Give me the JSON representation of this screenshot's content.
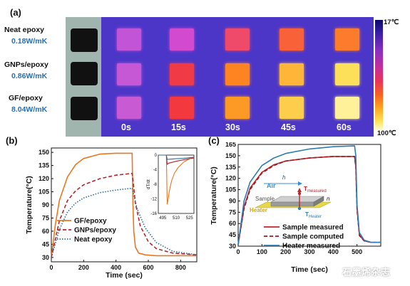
{
  "panel_a": {
    "label": "(a)",
    "materials": [
      {
        "name": "Neat epoxy",
        "k": "0.18W/mK"
      },
      {
        "name": "GNPs/epoxy",
        "k": "0.86W/mK"
      },
      {
        "name": "GF/epoxy",
        "k": "8.04W/mK"
      }
    ],
    "times": [
      "0s",
      "15s",
      "30s",
      "45s",
      "60s"
    ],
    "colorbar_top": "17℃",
    "colorbar_bottom": "100℃",
    "square_colors": [
      [
        "#c254d8",
        "#d24ad0",
        "#ef4a6a",
        "#f96238",
        "#fb7c2c"
      ],
      [
        "#c658d6",
        "#f03a45",
        "#fd8420",
        "#fdb638",
        "#fde05a"
      ],
      [
        "#c85ad3",
        "#f3393e",
        "#fd9a26",
        "#fdce4c",
        "#fff09a"
      ]
    ]
  },
  "panel_b": {
    "label": "(b)"
  },
  "panel_c": {
    "label": "(c)"
  },
  "watermark": "石墨烯杂志",
  "chart_data": [
    {
      "type": "line",
      "title": "",
      "xlabel": "Time (sec)",
      "ylabel": "Temperature(°C)",
      "xlim": [
        0,
        900
      ],
      "ylim": [
        25,
        155
      ],
      "xticks": [
        0,
        200,
        400,
        600,
        800
      ],
      "yticks": [
        30,
        45,
        60,
        75,
        90,
        105,
        120,
        135,
        150
      ],
      "legend_position": "bottom-left",
      "series": [
        {
          "name": "GF/epoxy",
          "color": "#e87722",
          "dash": "solid",
          "x": [
            0,
            25,
            50,
            100,
            150,
            200,
            300,
            400,
            500,
            505,
            510,
            520,
            540,
            580,
            650,
            750,
            900
          ],
          "y": [
            30,
            68,
            95,
            122,
            136,
            143,
            148,
            149,
            149,
            90,
            60,
            42,
            35,
            33,
            32,
            32,
            32
          ]
        },
        {
          "name": "GNPs/epoxy",
          "color": "#b5252c",
          "dash": "dashed",
          "x": [
            0,
            50,
            100,
            150,
            200,
            300,
            400,
            500,
            505,
            520,
            550,
            600,
            650,
            750,
            900
          ],
          "y": [
            30,
            72,
            95,
            106,
            113,
            120,
            124,
            126,
            118,
            92,
            66,
            48,
            40,
            35,
            33
          ]
        },
        {
          "name": "Neat epoxy",
          "color": "#2c6e9e",
          "dash": "dotted",
          "x": [
            0,
            50,
            100,
            150,
            200,
            300,
            400,
            500,
            505,
            530,
            580,
            650,
            750,
            900
          ],
          "y": [
            30,
            62,
            82,
            92,
            98,
            104,
            107,
            109,
            105,
            86,
            64,
            47,
            37,
            33
          ]
        }
      ],
      "inset": {
        "xlabel": "",
        "ylabel": "dT/dt",
        "xlim": [
          490,
          530
        ],
        "ylim": [
          -16,
          0
        ],
        "xticks": [
          495,
          510,
          525
        ],
        "yticks": [
          0,
          -4,
          -8,
          -12,
          -16
        ],
        "series": [
          {
            "name": "GF/epoxy",
            "color": "#e87722",
            "x": [
              490,
              499,
              500,
              501,
              503,
              505,
              508,
              512,
              518,
              525,
              530
            ],
            "y": [
              0,
              0,
              -13.5,
              -12,
              -9,
              -7,
              -5,
              -3.5,
              -2,
              -1,
              -0.5
            ]
          },
          {
            "name": "GNPs/epoxy",
            "color": "#b5252c",
            "x": [
              490,
              499,
              500,
              502,
              505,
              510,
              518,
              525,
              530
            ],
            "y": [
              0,
              0,
              -2.5,
              -2.2,
              -2,
              -1.7,
              -1.3,
              -1,
              -0.8
            ]
          },
          {
            "name": "Neat epoxy",
            "color": "#2c6e9e",
            "x": [
              490,
              499,
              500,
              505,
              510,
              518,
              525,
              530
            ],
            "y": [
              0,
              0,
              -1.2,
              -1.1,
              -1,
              -0.9,
              -0.7,
              -0.6
            ]
          }
        ]
      }
    },
    {
      "type": "line",
      "title": "",
      "xlabel": "Time (sec)",
      "ylabel": "Temperature(°C)",
      "xlim": [
        0,
        600
      ],
      "ylim": [
        30,
        165
      ],
      "xticks": [
        0,
        100,
        200,
        300,
        400,
        500
      ],
      "yticks": [
        30,
        45,
        60,
        75,
        90,
        105,
        120,
        135,
        150,
        165
      ],
      "tick_labels_x": [
        "0",
        "100",
        "200",
        "300",
        "400",
        "500"
      ],
      "legend_position": "bottom-center",
      "series": [
        {
          "name": "Sample measured",
          "color": "#c0252c",
          "dash": "solid",
          "x": [
            0,
            25,
            50,
            100,
            150,
            200,
            300,
            400,
            490,
            495,
            500,
            510,
            530,
            560,
            600
          ],
          "y": [
            32,
            82,
            107,
            128,
            138,
            143,
            147,
            149,
            149,
            135,
            80,
            45,
            37,
            35,
            35
          ]
        },
        {
          "name": "Sample computed",
          "color": "#9b1b22",
          "dash": "dashed",
          "x": [
            0,
            25,
            50,
            100,
            150,
            200,
            300,
            400,
            490,
            495,
            500,
            510,
            530,
            560,
            600
          ],
          "y": [
            32,
            80,
            105,
            127,
            137,
            143,
            147,
            149,
            149,
            134,
            78,
            44,
            37,
            35,
            35
          ]
        },
        {
          "name": "Heater measured",
          "color": "#2e7cb3",
          "dash": "solid",
          "x": [
            0,
            25,
            50,
            100,
            150,
            200,
            300,
            400,
            490,
            495,
            500,
            510,
            530,
            560,
            600
          ],
          "y": [
            32,
            90,
            115,
            137,
            147,
            153,
            159,
            162,
            163,
            150,
            85,
            48,
            38,
            35,
            35
          ]
        }
      ],
      "inset_diagram": {
        "air_label": "Air",
        "h_label": "h",
        "sample_label": "Sample",
        "heater_label": "Heater",
        "n_label": "n",
        "t_measured_label": "T",
        "t_measured_sub": "measured",
        "t_heater_label": "T",
        "t_heater_sub": "Heater"
      }
    }
  ]
}
